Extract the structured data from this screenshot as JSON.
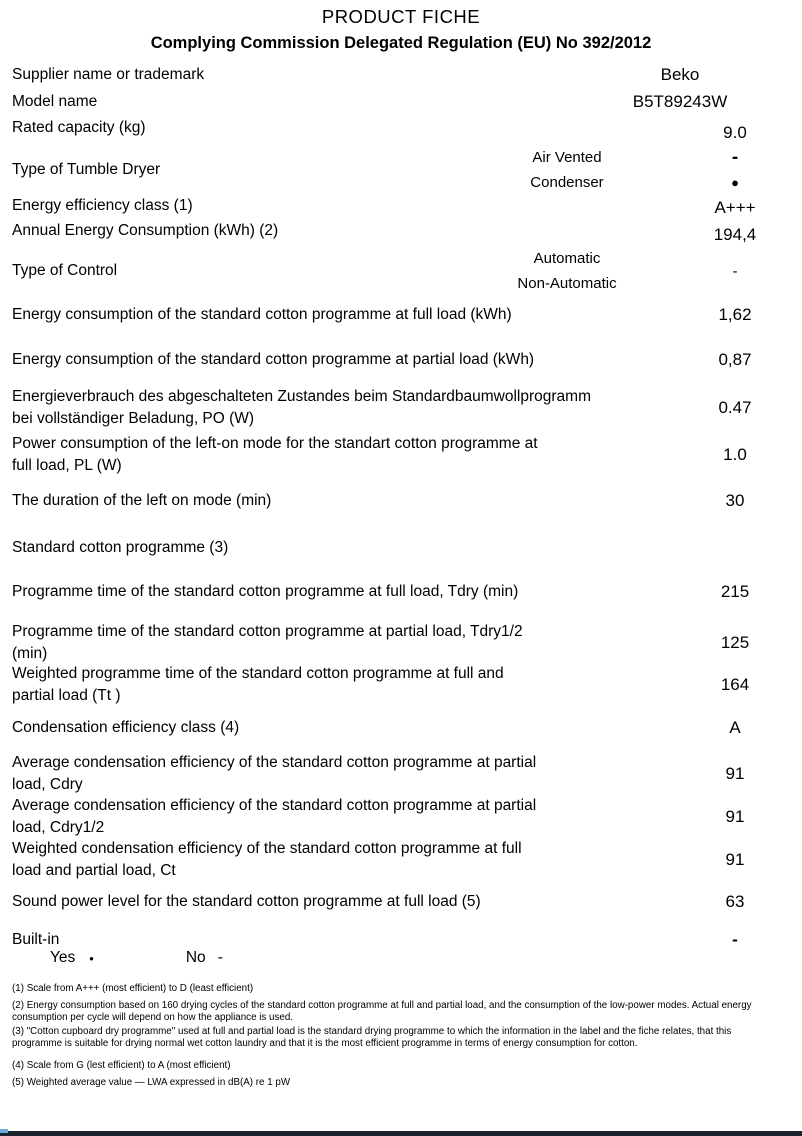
{
  "header": {
    "title": "PRODUCT FICHE",
    "subtitle": "Complying Commission Delegated Regulation (EU) No 392/2012"
  },
  "rows": [
    {
      "label": "Supplier name or trademark",
      "value": "Beko"
    },
    {
      "label": "Model name",
      "value": "B5T89243W"
    },
    {
      "label": "Rated capacity (kg)",
      "value": "9.0"
    },
    {
      "label": "Type of Tumble Dryer",
      "options": [
        {
          "name": "Air Vented",
          "value": "-"
        },
        {
          "name": "Condenser",
          "value": "●"
        }
      ]
    },
    {
      "label": "Energy efficiency class (1)",
      "value": "A+++"
    },
    {
      "label": "Annual Energy Consumption (kWh) (2)",
      "value": "194,4"
    },
    {
      "label": "Type of Control",
      "options": [
        {
          "name": "Automatic",
          "value": ""
        },
        {
          "name": "Non-Automatic",
          "value": "-"
        }
      ]
    },
    {
      "label": "Energy consumption of the standard cotton programme at full load (kWh)",
      "value": "1,62"
    },
    {
      "label": "Energy consumption of the standard cotton programme at partial load (kWh)",
      "value": "0,87"
    },
    {
      "label": "Energieverbrauch des abgeschalteten Zustandes beim Standardbaumwollprogramm",
      "label2": "bei vollständiger Beladung, PO (W)",
      "value": "0.47"
    },
    {
      "label": "Power consumption of the left-on mode for the standart cotton programme at",
      "label2": "full load, PL (W)",
      "value": "1.0"
    },
    {
      "label": "The duration of the left on mode (min)",
      "value": "30"
    },
    {
      "label": "Standard cotton programme (3)",
      "value": ""
    },
    {
      "label": "Programme time of the standard cotton programme at full load, Tdry (min)",
      "value": "215"
    },
    {
      "label": "Programme time of the standard cotton programme at partial load, Tdry1/2",
      "label2": "(min)",
      "value": "125"
    },
    {
      "label": "Weighted programme time of the standard cotton programme at full and",
      "label2": "partial load (Tt )",
      "value": "164"
    },
    {
      "label": "Condensation efficiency class (4)",
      "value": "A"
    },
    {
      "label": "Average condensation efficiency of the standard cotton programme at partial",
      "label2": "load, Cdry",
      "value": "91"
    },
    {
      "label": "Average condensation efficiency of the standard cotton programme at partial",
      "label2": "load, Cdry1/2",
      "value": "91"
    },
    {
      "label": "Weighted condensation efficiency of the standard cotton programme at full",
      "label2": "load and partial load, Ct",
      "value": "91"
    },
    {
      "label": "Sound power level for the standard cotton programme at full load (5)",
      "value": "63"
    },
    {
      "label": "Built-in",
      "value": "-",
      "legend": {
        "yes_label": "Yes",
        "yes_mark": "•",
        "no_label": "No",
        "no_mark": "-"
      }
    }
  ],
  "footnotes": [
    "(1) Scale from A+++ (most efficient) to D (least efficient)",
    "(2) Energy consumption based on 160 drying cycles of the standard cotton programme at full and partial load, and the consumption of the low-power modes. Actual energy consumption per cycle will depend on how the appliance is used.",
    "(3) \"Cotton cupboard dry programme\" used at full and partial load is the standard drying programme to which the information  in the label and the fiche relates, that this programme is suitable for drying normal wet cotton laundry and that it is the most efficient programme in terms of energy consumption for cotton.",
    "(4) Scale from G (lest efficient) to A (most efficient)",
    "(5) Weighted average value — LWA   expressed in dB(A) re 1 pW"
  ],
  "colors": {
    "bottom_bar": "#1c2330",
    "accent": "#6fa8dc"
  }
}
